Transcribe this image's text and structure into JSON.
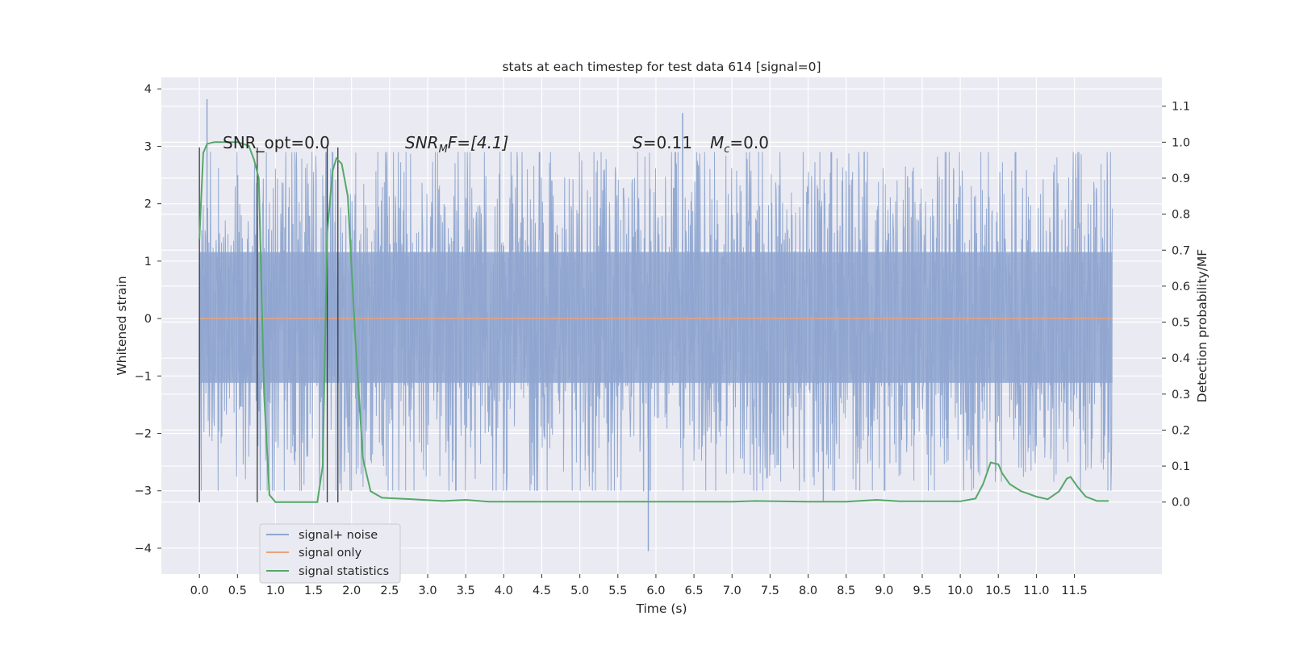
{
  "chart_data": {
    "type": "line",
    "title": "stats at each timestep for test data 614 [signal=0]",
    "xlabel": "Time (s)",
    "ylabel_left": "Whitened strain",
    "ylabel_right": "Detection probability/MF",
    "xlim": [
      -0.5,
      12.65
    ],
    "ylim_left": [
      -4.45,
      4.2
    ],
    "ylim_right": [
      -0.2,
      1.18
    ],
    "grid": true,
    "legend_position": "lower-left",
    "x_ticks": [
      "0.0",
      "0.5",
      "1.0",
      "1.5",
      "2.0",
      "2.5",
      "3.0",
      "3.5",
      "4.0",
      "4.5",
      "5.0",
      "5.5",
      "6.0",
      "6.5",
      "7.0",
      "7.5",
      "8.0",
      "8.5",
      "9.0",
      "9.5",
      "10.0",
      "10.5",
      "11.0",
      "11.5"
    ],
    "y_ticks_left": [
      "−4",
      "−3",
      "−2",
      "−1",
      "0",
      "1",
      "2",
      "3",
      "4"
    ],
    "y_ticks_right": [
      "0.0",
      "0.1",
      "0.2",
      "0.3",
      "0.4",
      "0.5",
      "0.6",
      "0.7",
      "0.8",
      "0.9",
      "1.0",
      "1.1"
    ],
    "annotations": {
      "snr_opt": "SNR_opt=0.0",
      "snr_mf_main": "SNR",
      "snr_mf_sub": "M",
      "snr_mf_rest": "F=[4.1]",
      "s_label": "S",
      "s_value": "=0.11",
      "mc_label": "M",
      "mc_sub": "c",
      "mc_value": "=0.0"
    },
    "series": [
      {
        "name": "signal+ noise",
        "axis": "left",
        "color": "#8fa6d0",
        "description_x_range": [
          0.0,
          12.0
        ],
        "typical_range": [
          -1.6,
          1.7
        ],
        "extremes": [
          {
            "x": 0.1,
            "y": 3.82
          },
          {
            "x": 5.9,
            "y": -4.05
          },
          {
            "x": 6.35,
            "y": 3.58
          },
          {
            "x": 0.0,
            "y": -3.2
          },
          {
            "x": 8.2,
            "y": -3.2
          }
        ]
      },
      {
        "name": "signal only",
        "axis": "left",
        "color": "#e8a27c",
        "x": [
          0.0,
          12.0
        ],
        "y": [
          0.0,
          0.0
        ]
      },
      {
        "name": "signal statistics",
        "axis": "right",
        "color": "#55a868",
        "x": [
          0.0,
          0.05,
          0.1,
          0.15,
          0.2,
          0.3,
          0.5,
          0.65,
          0.72,
          0.78,
          0.85,
          0.92,
          1.0,
          1.2,
          1.4,
          1.55,
          1.62,
          1.68,
          1.75,
          1.8,
          1.87,
          1.95,
          2.05,
          2.15,
          2.25,
          2.4,
          2.8,
          3.2,
          3.5,
          3.8,
          5.0,
          6.0,
          7.0,
          7.3,
          8.0,
          8.5,
          8.9,
          9.2,
          10.0,
          10.2,
          10.3,
          10.4,
          10.5,
          10.55,
          10.65,
          10.8,
          11.0,
          11.15,
          11.3,
          11.4,
          11.45,
          11.55,
          11.65,
          11.8,
          11.95
        ],
        "y": [
          0.73,
          0.97,
          0.995,
          0.998,
          1.0,
          1.0,
          1.0,
          0.99,
          0.95,
          0.9,
          0.3,
          0.02,
          0.0,
          0.0,
          0.0,
          0.0,
          0.1,
          0.75,
          0.92,
          0.955,
          0.94,
          0.85,
          0.45,
          0.12,
          0.03,
          0.012,
          0.008,
          0.003,
          0.006,
          0.001,
          0.001,
          0.001,
          0.001,
          0.003,
          0.001,
          0.001,
          0.006,
          0.002,
          0.002,
          0.01,
          0.05,
          0.11,
          0.105,
          0.08,
          0.05,
          0.03,
          0.015,
          0.008,
          0.03,
          0.065,
          0.07,
          0.04,
          0.015,
          0.003,
          0.003
        ]
      }
    ],
    "vertical_lines": [
      {
        "x": 0.0,
        "y_range": [
          -3.2,
          2.98
        ]
      },
      {
        "x": 0.76,
        "y_range": [
          -3.2,
          2.98
        ]
      },
      {
        "x": 1.68,
        "y_range": [
          -3.2,
          2.98
        ]
      },
      {
        "x": 1.82,
        "y_range": [
          -3.2,
          2.98
        ]
      }
    ]
  }
}
